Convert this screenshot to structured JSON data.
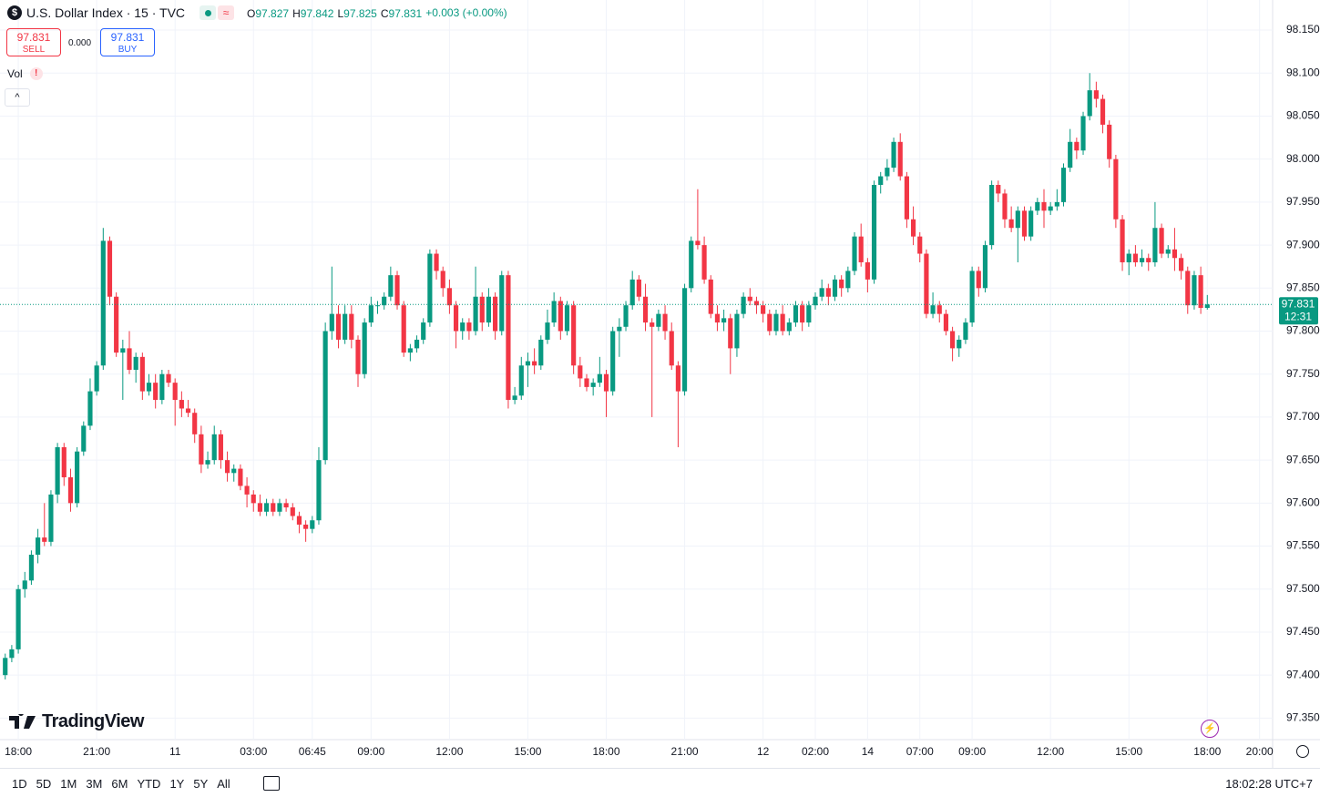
{
  "chart_data": {
    "type": "candlestick",
    "up_color": "#089981",
    "down_color": "#f23645",
    "grid": true,
    "xlim": [
      -0.8,
      194.0
    ],
    "xticks": [
      {
        "value": 2,
        "label": "18:00"
      },
      {
        "value": 14,
        "label": "21:00"
      },
      {
        "value": 26,
        "label": "11"
      },
      {
        "value": 38,
        "label": "03:00"
      },
      {
        "value": 47,
        "label": "06:45"
      },
      {
        "value": 56,
        "label": "09:00"
      },
      {
        "value": 68,
        "label": "12:00"
      },
      {
        "value": 80,
        "label": "15:00"
      },
      {
        "value": 92,
        "label": "18:00"
      },
      {
        "value": 104,
        "label": "21:00"
      },
      {
        "value": 116,
        "label": "12"
      },
      {
        "value": 124,
        "label": "02:00"
      },
      {
        "value": 132,
        "label": "14"
      },
      {
        "value": 140,
        "label": "07:00"
      },
      {
        "value": 148,
        "label": "09:00"
      },
      {
        "value": 160,
        "label": "12:00"
      },
      {
        "value": 172,
        "label": "15:00"
      },
      {
        "value": 184,
        "label": "18:00"
      },
      {
        "value": 192,
        "label": "20:00"
      }
    ],
    "ylim": [
      97.325,
      98.185
    ],
    "yticks": [
      {
        "value": 97.35,
        "label": "97.350"
      },
      {
        "value": 97.4,
        "label": "97.400"
      },
      {
        "value": 97.45,
        "label": "97.450"
      },
      {
        "value": 97.5,
        "label": "97.500"
      },
      {
        "value": 97.55,
        "label": "97.550"
      },
      {
        "value": 97.6,
        "label": "97.600"
      },
      {
        "value": 97.65,
        "label": "97.650"
      },
      {
        "value": 97.7,
        "label": "97.700"
      },
      {
        "value": 97.75,
        "label": "97.750"
      },
      {
        "value": 97.8,
        "label": "97.800"
      },
      {
        "value": 97.85,
        "label": "97.850"
      },
      {
        "value": 97.9,
        "label": "97.900"
      },
      {
        "value": 97.95,
        "label": "97.950"
      },
      {
        "value": 98.0,
        "label": "98.000"
      },
      {
        "value": 98.05,
        "label": "98.050"
      },
      {
        "value": 98.1,
        "label": "98.100"
      },
      {
        "value": 98.15,
        "label": "98.150"
      }
    ],
    "ohlc": [
      [
        97.4,
        97.425,
        97.395,
        97.42
      ],
      [
        97.42,
        97.435,
        97.415,
        97.43
      ],
      [
        97.43,
        97.505,
        97.425,
        97.5
      ],
      [
        97.5,
        97.52,
        97.49,
        97.51
      ],
      [
        97.51,
        97.545,
        97.505,
        97.54
      ],
      [
        97.54,
        97.57,
        97.53,
        97.56
      ],
      [
        97.56,
        97.6,
        97.55,
        97.555
      ],
      [
        97.555,
        97.615,
        97.55,
        97.61
      ],
      [
        97.61,
        97.67,
        97.6,
        97.665
      ],
      [
        97.665,
        97.67,
        97.62,
        97.63
      ],
      [
        97.63,
        97.64,
        97.59,
        97.6
      ],
      [
        97.6,
        97.665,
        97.595,
        97.66
      ],
      [
        97.66,
        97.695,
        97.655,
        97.69
      ],
      [
        97.69,
        97.745,
        97.685,
        97.73
      ],
      [
        97.73,
        97.765,
        97.725,
        97.76
      ],
      [
        97.76,
        97.92,
        97.755,
        97.905
      ],
      [
        97.905,
        97.91,
        97.83,
        97.84
      ],
      [
        97.84,
        97.845,
        97.77,
        97.775
      ],
      [
        97.775,
        97.79,
        97.72,
        97.78
      ],
      [
        97.78,
        97.8,
        97.75,
        97.755
      ],
      [
        97.755,
        97.775,
        97.74,
        97.77
      ],
      [
        97.77,
        97.775,
        97.72,
        97.73
      ],
      [
        97.73,
        97.75,
        97.725,
        97.74
      ],
      [
        97.74,
        97.75,
        97.71,
        97.72
      ],
      [
        97.72,
        97.755,
        97.715,
        97.75
      ],
      [
        97.75,
        97.755,
        97.735,
        97.74
      ],
      [
        97.74,
        97.745,
        97.69,
        97.72
      ],
      [
        97.72,
        97.73,
        97.7,
        97.71
      ],
      [
        97.71,
        97.72,
        97.7,
        97.705
      ],
      [
        97.705,
        97.71,
        97.67,
        97.68
      ],
      [
        97.68,
        97.69,
        97.635,
        97.645
      ],
      [
        97.645,
        97.66,
        97.64,
        97.65
      ],
      [
        97.65,
        97.69,
        97.645,
        97.68
      ],
      [
        97.68,
        97.685,
        97.64,
        97.65
      ],
      [
        97.65,
        97.66,
        97.625,
        97.635
      ],
      [
        97.635,
        97.645,
        97.625,
        97.64
      ],
      [
        97.64,
        97.645,
        97.615,
        97.62
      ],
      [
        97.62,
        97.63,
        97.595,
        97.61
      ],
      [
        97.61,
        97.615,
        97.59,
        97.6
      ],
      [
        97.6,
        97.61,
        97.585,
        97.59
      ],
      [
        97.59,
        97.605,
        97.585,
        97.6
      ],
      [
        97.6,
        97.605,
        97.585,
        97.59
      ],
      [
        97.59,
        97.605,
        97.585,
        97.6
      ],
      [
        97.6,
        97.605,
        97.59,
        97.595
      ],
      [
        97.595,
        97.6,
        97.58,
        97.585
      ],
      [
        97.585,
        97.59,
        97.565,
        97.575
      ],
      [
        97.575,
        97.58,
        97.555,
        97.57
      ],
      [
        97.57,
        97.585,
        97.565,
        97.58
      ],
      [
        97.58,
        97.665,
        97.575,
        97.65
      ],
      [
        97.65,
        97.81,
        97.645,
        97.8
      ],
      [
        97.8,
        97.875,
        97.79,
        97.82
      ],
      [
        97.82,
        97.83,
        97.78,
        97.79
      ],
      [
        97.79,
        97.83,
        97.785,
        97.82
      ],
      [
        97.82,
        97.83,
        97.78,
        97.79
      ],
      [
        97.79,
        97.795,
        97.735,
        97.75
      ],
      [
        97.75,
        97.815,
        97.745,
        97.81
      ],
      [
        97.81,
        97.84,
        97.805,
        97.83
      ],
      [
        97.83,
        97.835,
        97.82,
        97.83
      ],
      [
        97.83,
        97.845,
        97.825,
        97.84
      ],
      [
        97.84,
        97.875,
        97.835,
        97.865
      ],
      [
        97.865,
        97.87,
        97.825,
        97.83
      ],
      [
        97.83,
        97.835,
        97.77,
        97.775
      ],
      [
        97.775,
        97.785,
        97.765,
        97.78
      ],
      [
        97.78,
        97.795,
        97.775,
        97.79
      ],
      [
        97.79,
        97.815,
        97.785,
        97.81
      ],
      [
        97.81,
        97.895,
        97.805,
        97.89
      ],
      [
        97.89,
        97.895,
        97.86,
        97.87
      ],
      [
        97.87,
        97.875,
        97.84,
        97.85
      ],
      [
        97.85,
        97.86,
        97.82,
        97.83
      ],
      [
        97.83,
        97.835,
        97.78,
        97.8
      ],
      [
        97.8,
        97.815,
        97.79,
        97.81
      ],
      [
        97.81,
        97.815,
        97.79,
        97.8
      ],
      [
        97.8,
        97.875,
        97.795,
        97.84
      ],
      [
        97.84,
        97.845,
        97.8,
        97.81
      ],
      [
        97.81,
        97.85,
        97.805,
        97.84
      ],
      [
        97.84,
        97.845,
        97.79,
        97.8
      ],
      [
        97.8,
        97.87,
        97.795,
        97.865
      ],
      [
        97.865,
        97.87,
        97.71,
        97.72
      ],
      [
        97.72,
        97.735,
        97.715,
        97.725
      ],
      [
        97.725,
        97.77,
        97.72,
        97.76
      ],
      [
        97.76,
        97.775,
        97.735,
        97.765
      ],
      [
        97.765,
        97.78,
        97.75,
        97.76
      ],
      [
        97.76,
        97.795,
        97.755,
        97.79
      ],
      [
        97.79,
        97.825,
        97.785,
        97.81
      ],
      [
        97.81,
        97.845,
        97.805,
        97.835
      ],
      [
        97.835,
        97.84,
        97.79,
        97.8
      ],
      [
        97.8,
        97.835,
        97.795,
        97.83
      ],
      [
        97.83,
        97.835,
        97.75,
        97.76
      ],
      [
        97.76,
        97.77,
        97.735,
        97.745
      ],
      [
        97.745,
        97.75,
        97.73,
        97.735
      ],
      [
        97.735,
        97.745,
        97.725,
        97.74
      ],
      [
        97.74,
        97.77,
        97.735,
        97.75
      ],
      [
        97.75,
        97.755,
        97.7,
        97.73
      ],
      [
        97.73,
        97.805,
        97.725,
        97.8
      ],
      [
        97.8,
        97.815,
        97.77,
        97.805
      ],
      [
        97.805,
        97.835,
        97.8,
        97.83
      ],
      [
        97.83,
        97.87,
        97.825,
        97.86
      ],
      [
        97.86,
        97.865,
        97.835,
        97.84
      ],
      [
        97.84,
        97.855,
        97.8,
        97.81
      ],
      [
        97.81,
        97.815,
        97.7,
        97.805
      ],
      [
        97.805,
        97.825,
        97.8,
        97.82
      ],
      [
        97.82,
        97.83,
        97.79,
        97.8
      ],
      [
        97.8,
        97.81,
        97.755,
        97.76
      ],
      [
        97.76,
        97.765,
        97.665,
        97.73
      ],
      [
        97.73,
        97.855,
        97.725,
        97.85
      ],
      [
        97.85,
        97.91,
        97.845,
        97.905
      ],
      [
        97.905,
        97.965,
        97.895,
        97.9
      ],
      [
        97.9,
        97.91,
        97.855,
        97.86
      ],
      [
        97.86,
        97.865,
        97.815,
        97.82
      ],
      [
        97.82,
        97.83,
        97.8,
        97.81
      ],
      [
        97.81,
        97.825,
        97.8,
        97.815
      ],
      [
        97.815,
        97.82,
        97.75,
        97.78
      ],
      [
        97.78,
        97.825,
        97.77,
        97.82
      ],
      [
        97.82,
        97.845,
        97.815,
        97.84
      ],
      [
        97.84,
        97.85,
        97.83,
        97.835
      ],
      [
        97.835,
        97.84,
        97.82,
        97.83
      ],
      [
        97.83,
        97.835,
        97.81,
        97.82
      ],
      [
        97.82,
        97.825,
        97.795,
        97.8
      ],
      [
        97.8,
        97.825,
        97.795,
        97.82
      ],
      [
        97.82,
        97.83,
        97.795,
        97.8
      ],
      [
        97.8,
        97.815,
        97.795,
        97.81
      ],
      [
        97.81,
        97.835,
        97.805,
        97.83
      ],
      [
        97.83,
        97.835,
        97.8,
        97.81
      ],
      [
        97.81,
        97.835,
        97.805,
        97.83
      ],
      [
        97.83,
        97.845,
        97.825,
        97.84
      ],
      [
        97.84,
        97.86,
        97.835,
        97.85
      ],
      [
        97.85,
        97.855,
        97.83,
        97.84
      ],
      [
        97.84,
        97.865,
        97.835,
        97.86
      ],
      [
        97.86,
        97.865,
        97.84,
        97.85
      ],
      [
        97.85,
        97.875,
        97.845,
        97.87
      ],
      [
        97.87,
        97.915,
        97.865,
        97.91
      ],
      [
        97.91,
        97.925,
        97.875,
        97.88
      ],
      [
        97.88,
        97.885,
        97.845,
        97.86
      ],
      [
        97.86,
        97.975,
        97.855,
        97.97
      ],
      [
        97.97,
        97.985,
        97.96,
        97.98
      ],
      [
        97.98,
        98.0,
        97.975,
        97.99
      ],
      [
        97.99,
        98.025,
        97.985,
        98.02
      ],
      [
        98.02,
        98.03,
        97.975,
        97.98
      ],
      [
        97.98,
        97.985,
        97.92,
        97.93
      ],
      [
        97.93,
        97.945,
        97.9,
        97.91
      ],
      [
        97.91,
        97.915,
        97.88,
        97.89
      ],
      [
        97.89,
        97.895,
        97.815,
        97.82
      ],
      [
        97.82,
        97.845,
        97.815,
        97.83
      ],
      [
        97.83,
        97.835,
        97.81,
        97.82
      ],
      [
        97.82,
        97.825,
        97.795,
        97.8
      ],
      [
        97.8,
        97.805,
        97.765,
        97.78
      ],
      [
        97.78,
        97.795,
        97.77,
        97.79
      ],
      [
        97.79,
        97.815,
        97.785,
        97.81
      ],
      [
        97.81,
        97.875,
        97.805,
        97.87
      ],
      [
        97.87,
        97.875,
        97.84,
        97.85
      ],
      [
        97.85,
        97.905,
        97.845,
        97.9
      ],
      [
        97.9,
        97.975,
        97.895,
        97.97
      ],
      [
        97.97,
        97.975,
        97.95,
        97.96
      ],
      [
        97.96,
        97.965,
        97.92,
        97.93
      ],
      [
        97.93,
        97.945,
        97.915,
        97.92
      ],
      [
        97.92,
        97.945,
        97.88,
        97.94
      ],
      [
        97.94,
        97.945,
        97.905,
        97.91
      ],
      [
        97.91,
        97.945,
        97.905,
        97.94
      ],
      [
        97.94,
        97.955,
        97.935,
        97.95
      ],
      [
        97.95,
        97.965,
        97.92,
        97.94
      ],
      [
        97.94,
        97.95,
        97.935,
        97.945
      ],
      [
        97.945,
        97.965,
        97.94,
        97.95
      ],
      [
        97.95,
        97.995,
        97.945,
        97.99
      ],
      [
        97.99,
        98.035,
        97.985,
        98.02
      ],
      [
        98.02,
        98.025,
        98.0,
        98.01
      ],
      [
        98.01,
        98.055,
        98.005,
        98.05
      ],
      [
        98.05,
        98.1,
        98.045,
        98.08
      ],
      [
        98.08,
        98.09,
        98.06,
        98.07
      ],
      [
        98.07,
        98.075,
        98.03,
        98.04
      ],
      [
        98.04,
        98.045,
        97.99,
        98.0
      ],
      [
        98.0,
        98.005,
        97.92,
        97.93
      ],
      [
        97.93,
        97.935,
        97.87,
        97.88
      ],
      [
        97.88,
        97.895,
        97.865,
        97.89
      ],
      [
        97.89,
        97.9,
        97.875,
        97.88
      ],
      [
        97.88,
        97.895,
        97.875,
        97.885
      ],
      [
        97.885,
        97.89,
        97.87,
        97.88
      ],
      [
        97.88,
        97.95,
        97.875,
        97.92
      ],
      [
        97.92,
        97.925,
        97.885,
        97.89
      ],
      [
        97.89,
        97.9,
        97.885,
        97.895
      ],
      [
        97.895,
        97.92,
        97.87,
        97.885
      ],
      [
        97.885,
        97.89,
        97.86,
        97.87
      ],
      [
        97.87,
        97.875,
        97.82,
        97.83
      ],
      [
        97.83,
        97.87,
        97.825,
        97.865
      ],
      [
        97.865,
        97.875,
        97.82,
        97.827
      ],
      [
        97.827,
        97.842,
        97.825,
        97.831
      ]
    ]
  },
  "header": {
    "symbol": "U.S. Dollar Index · 15 · TVC",
    "legend": [
      {
        "label": "O",
        "value": "97.827"
      },
      {
        "label": "H",
        "value": "97.842"
      },
      {
        "label": "L",
        "value": "97.825"
      },
      {
        "label": "C",
        "value": "97.831"
      }
    ],
    "change": "+0.003 (+0.00%)"
  },
  "trade": {
    "sell_price": "97.831",
    "sell": "SELL",
    "spread": "0.000",
    "buy_price": "97.831",
    "buy": "BUY"
  },
  "volume": "Vol",
  "last_price": {
    "price": "97.831",
    "countdown": "12:31"
  },
  "logo": "TradingView",
  "toolbar": {
    "ranges": [
      "1D",
      "5D",
      "1M",
      "3M",
      "6M",
      "YTD",
      "1Y",
      "5Y",
      "All"
    ],
    "clock": "18:02:28 UTC+7"
  }
}
